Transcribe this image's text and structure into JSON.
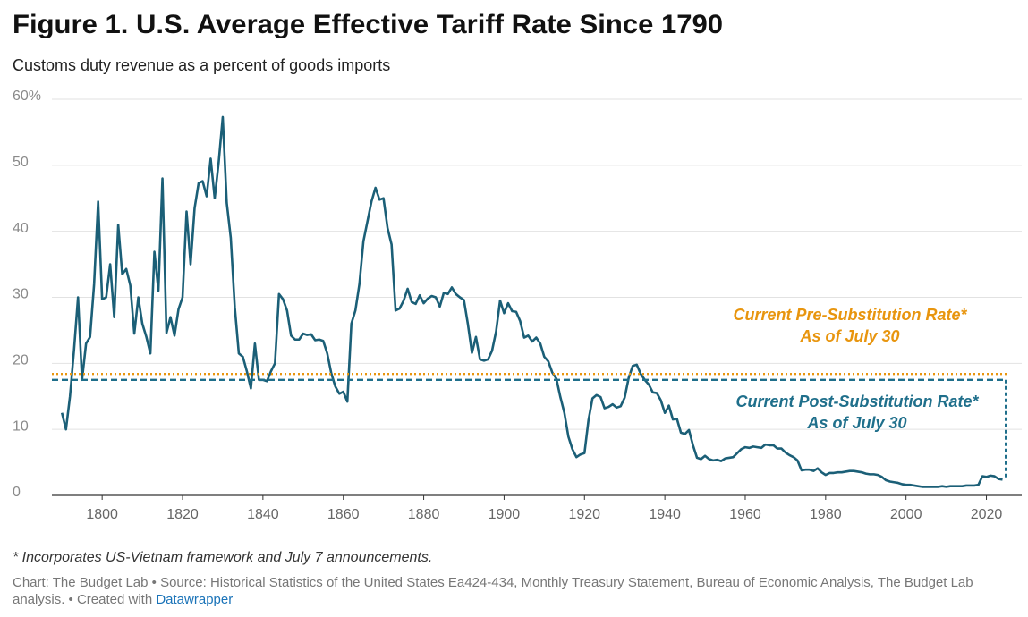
{
  "chart_data": {
    "type": "line",
    "title": "Figure 1. U.S. Average Effective Tariff Rate Since 1790",
    "subtitle": "Customs duty revenue as a percent of goods imports",
    "x": [
      1790,
      1791,
      1792,
      1793,
      1794,
      1795,
      1796,
      1797,
      1798,
      1799,
      1800,
      1801,
      1802,
      1803,
      1804,
      1805,
      1806,
      1807,
      1808,
      1809,
      1810,
      1811,
      1812,
      1813,
      1814,
      1815,
      1816,
      1817,
      1818,
      1819,
      1820,
      1821,
      1822,
      1823,
      1824,
      1825,
      1826,
      1827,
      1828,
      1829,
      1830,
      1831,
      1832,
      1833,
      1834,
      1835,
      1836,
      1837,
      1838,
      1839,
      1840,
      1841,
      1842,
      1843,
      1844,
      1845,
      1846,
      1847,
      1848,
      1849,
      1850,
      1851,
      1852,
      1853,
      1854,
      1855,
      1856,
      1857,
      1858,
      1859,
      1860,
      1861,
      1862,
      1863,
      1864,
      1865,
      1866,
      1867,
      1868,
      1869,
      1870,
      1871,
      1872,
      1873,
      1874,
      1875,
      1876,
      1877,
      1878,
      1879,
      1880,
      1881,
      1882,
      1883,
      1884,
      1885,
      1886,
      1887,
      1888,
      1889,
      1890,
      1891,
      1892,
      1893,
      1894,
      1895,
      1896,
      1897,
      1898,
      1899,
      1900,
      1901,
      1902,
      1903,
      1904,
      1905,
      1906,
      1907,
      1908,
      1909,
      1910,
      1911,
      1912,
      1913,
      1914,
      1915,
      1916,
      1917,
      1918,
      1919,
      1920,
      1921,
      1922,
      1923,
      1924,
      1925,
      1926,
      1927,
      1928,
      1929,
      1930,
      1931,
      1932,
      1933,
      1934,
      1935,
      1936,
      1937,
      1938,
      1939,
      1940,
      1941,
      1942,
      1943,
      1944,
      1945,
      1946,
      1947,
      1948,
      1949,
      1950,
      1951,
      1952,
      1953,
      1954,
      1955,
      1956,
      1957,
      1958,
      1959,
      1960,
      1961,
      1962,
      1963,
      1964,
      1965,
      1966,
      1967,
      1968,
      1969,
      1970,
      1971,
      1972,
      1973,
      1974,
      1975,
      1976,
      1977,
      1978,
      1979,
      1980,
      1981,
      1982,
      1983,
      1984,
      1985,
      1986,
      1987,
      1988,
      1989,
      1990,
      1991,
      1992,
      1993,
      1994,
      1995,
      1996,
      1997,
      1998,
      1999,
      2000,
      2001,
      2002,
      2003,
      2004,
      2005,
      2006,
      2007,
      2008,
      2009,
      2010,
      2011,
      2012,
      2013,
      2014,
      2015,
      2016,
      2017,
      2018,
      2019,
      2020,
      2021,
      2022,
      2023,
      2024
    ],
    "series": [
      {
        "color": "#1b5f77",
        "values": [
          12.5,
          10,
          15,
          22,
          30,
          17.5,
          23,
          24,
          32,
          44.5,
          29.7,
          30,
          35,
          27,
          41,
          33.5,
          34.3,
          31.8,
          24.5,
          30,
          26,
          24,
          21.5,
          36.9,
          31,
          48,
          24.6,
          27,
          24.2,
          28.2,
          30,
          43,
          35,
          43.5,
          47.3,
          47.6,
          45.3,
          51,
          45,
          50.5,
          57.3,
          44.3,
          39,
          28.5,
          21.5,
          21,
          18.8,
          16.2,
          23,
          17.5,
          17.5,
          17.3,
          18.8,
          20,
          30.5,
          29.7,
          28,
          24.2,
          23.6,
          23.6,
          24.5,
          24.3,
          24.4,
          23.5,
          23.6,
          23.4,
          21.5,
          18.5,
          16.5,
          15.4,
          15.7,
          14.2,
          26,
          28,
          32,
          38.5,
          41.5,
          44.5,
          46.6,
          44.8,
          45,
          40.5,
          38,
          28,
          28.3,
          29.5,
          31.3,
          29.3,
          29,
          30.3,
          29.1,
          29.8,
          30.2,
          30,
          28.6,
          30.7,
          30.5,
          31.5,
          30.5,
          30,
          29.6,
          25.9,
          21.6,
          24,
          20.6,
          20.4,
          20.6,
          21.9,
          24.8,
          29.5,
          27.6,
          29.1,
          27.9,
          27.8,
          26.4,
          23.9,
          24.2,
          23.3,
          23.9,
          23,
          21,
          20.3,
          18.6,
          17.7,
          14.9,
          12.5,
          8.9,
          7,
          5.8,
          6.2,
          6.4,
          11.4,
          14.7,
          15.2,
          14.9,
          13.2,
          13.4,
          13.8,
          13.3,
          13.5,
          14.8,
          17.8,
          19.6,
          19.8,
          18.4,
          17.5,
          16.8,
          15.6,
          15.5,
          14.4,
          12.5,
          13.6,
          11.5,
          11.6,
          9.5,
          9.3,
          9.9,
          7.6,
          5.7,
          5.5,
          6,
          5.5,
          5.3,
          5.4,
          5.2,
          5.6,
          5.7,
          5.8,
          6.4,
          7,
          7.3,
          7.2,
          7.4,
          7.3,
          7.2,
          7.7,
          7.6,
          7.6,
          7.1,
          7.1,
          6.5,
          6.1,
          5.8,
          5.3,
          3.8,
          3.9,
          3.9,
          3.7,
          4.1,
          3.5,
          3.1,
          3.4,
          3.4,
          3.5,
          3.5,
          3.6,
          3.7,
          3.7,
          3.6,
          3.5,
          3.3,
          3.2,
          3.2,
          3.1,
          2.8,
          2.3,
          2.1,
          2,
          1.9,
          1.7,
          1.6,
          1.6,
          1.5,
          1.4,
          1.3,
          1.3,
          1.3,
          1.3,
          1.3,
          1.4,
          1.3,
          1.4,
          1.4,
          1.4,
          1.4,
          1.5,
          1.5,
          1.5,
          1.6,
          2.9,
          2.8,
          3,
          2.9,
          2.5,
          2.4
        ]
      }
    ],
    "xlim": [
      1787.5,
      2025
    ],
    "xticks": [
      1800,
      1820,
      1840,
      1860,
      1880,
      1900,
      1920,
      1940,
      1960,
      1980,
      2000,
      2020
    ],
    "ylim": [
      0,
      60
    ],
    "yticks": [
      0,
      10,
      20,
      30,
      40,
      50,
      {
        "value": 60,
        "label": "60%"
      }
    ],
    "grid": true,
    "reference_lines": [
      {
        "value": 18.4,
        "color": "#e8950e",
        "style": "dotted",
        "label_lines": [
          "Current Pre-Substitution Rate*",
          "As of July 30"
        ]
      },
      {
        "value": 17.5,
        "color": "#1f6f8b",
        "style": "dashed",
        "label_lines": [
          "Current Post-Substitution Rate*",
          "As of July 30"
        ]
      }
    ],
    "footnote": "* Incorporates US-Vietnam framework and July 7 announcements.",
    "source": "Chart: The Budget Lab • Source: Historical Statistics of the United States Ea424-434, Monthly Treasury Statement, Bureau of Economic Analysis, The Budget Lab analysis.",
    "credit": "• Created with",
    "credit_link": "Datawrapper"
  }
}
